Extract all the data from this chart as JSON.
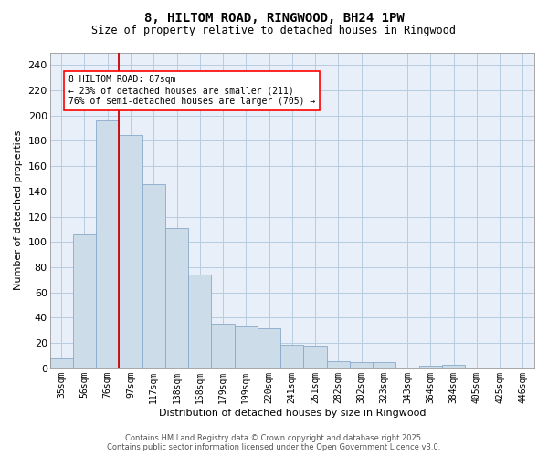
{
  "title": "8, HILTOM ROAD, RINGWOOD, BH24 1PW",
  "subtitle": "Size of property relative to detached houses in Ringwood",
  "xlabel": "Distribution of detached houses by size in Ringwood",
  "ylabel": "Number of detached properties",
  "bar_color": "#ccdce8",
  "bar_edge_color": "#88aacc",
  "background_color": "#ffffff",
  "plot_bg_color": "#e8eff8",
  "grid_color": "#b8cce0",
  "categories": [
    "35sqm",
    "56sqm",
    "76sqm",
    "97sqm",
    "117sqm",
    "138sqm",
    "158sqm",
    "179sqm",
    "199sqm",
    "220sqm",
    "241sqm",
    "261sqm",
    "282sqm",
    "302sqm",
    "323sqm",
    "343sqm",
    "364sqm",
    "384sqm",
    "405sqm",
    "425sqm",
    "446sqm"
  ],
  "values": [
    8,
    106,
    196,
    185,
    146,
    111,
    74,
    35,
    33,
    32,
    19,
    18,
    6,
    5,
    5,
    0,
    2,
    3,
    0,
    0,
    1
  ],
  "ylim": [
    0,
    250
  ],
  "yticks": [
    0,
    20,
    40,
    60,
    80,
    100,
    120,
    140,
    160,
    180,
    200,
    220,
    240
  ],
  "property_line_idx": 2.5,
  "annotation_text": "8 HILTOM ROAD: 87sqm\n← 23% of detached houses are smaller (211)\n76% of semi-detached houses are larger (705) →",
  "red_line_color": "#cc0000",
  "footer_line1": "Contains HM Land Registry data © Crown copyright and database right 2025.",
  "footer_line2": "Contains public sector information licensed under the Open Government Licence v3.0."
}
